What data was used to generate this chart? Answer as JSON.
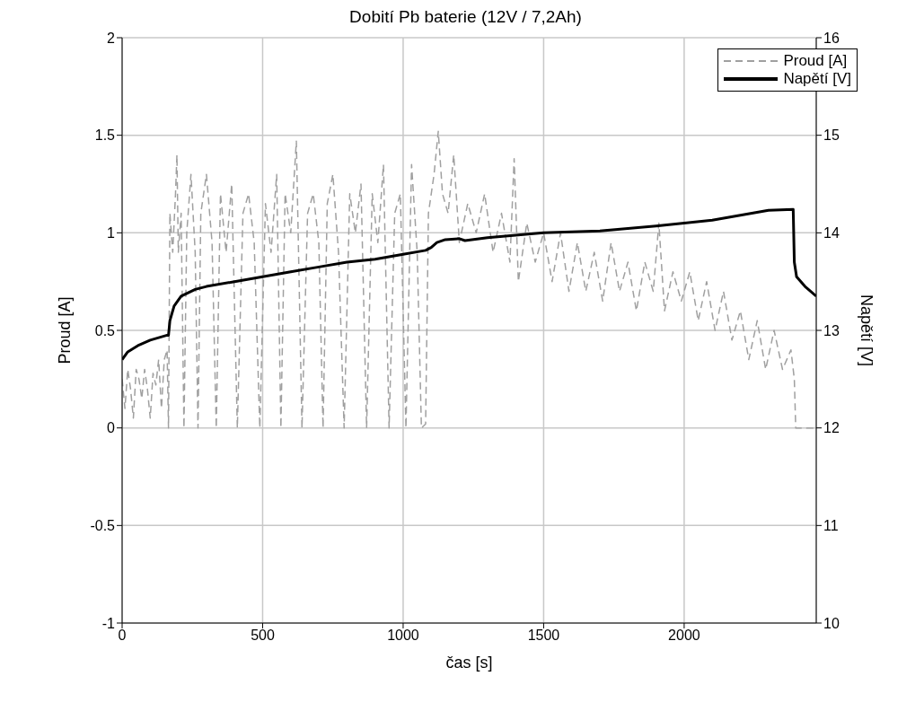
{
  "chart_data": {
    "type": "line",
    "title": "Dobití Pb baterie (12V / 7,2Ah)",
    "xlabel": "čas [s]",
    "ylabel": "Proud [A]",
    "y2label": "Napětí [V]",
    "xlim": [
      0,
      2470
    ],
    "xticks": [
      0,
      500,
      1000,
      1500,
      2000
    ],
    "ylim": [
      -1,
      2
    ],
    "yticks": [
      -1,
      -0.5,
      0,
      0.5,
      1,
      1.5,
      2
    ],
    "y2lim": [
      10,
      16
    ],
    "y2ticks": [
      10,
      11,
      12,
      13,
      14,
      15,
      16
    ],
    "grid": true,
    "legend": "top right",
    "series": [
      {
        "name": "Proud [A]",
        "color": "#a0a0a0",
        "line_style": "dashed",
        "x": [
          0,
          10,
          20,
          30,
          40,
          50,
          60,
          70,
          80,
          90,
          100,
          110,
          120,
          130,
          140,
          150,
          160,
          165,
          170,
          180,
          190,
          195,
          200,
          210,
          220,
          230,
          245,
          260,
          270,
          280,
          300,
          320,
          335,
          350,
          370,
          390,
          410,
          430,
          450,
          470,
          490,
          510,
          530,
          550,
          565,
          580,
          600,
          620,
          640,
          660,
          680,
          700,
          715,
          730,
          750,
          770,
          790,
          810,
          830,
          850,
          870,
          890,
          910,
          930,
          950,
          970,
          990,
          1010,
          1030,
          1050,
          1065,
          1080,
          1090,
          1110,
          1125,
          1140,
          1160,
          1180,
          1200,
          1230,
          1260,
          1290,
          1320,
          1350,
          1380,
          1395,
          1410,
          1440,
          1470,
          1500,
          1530,
          1560,
          1590,
          1620,
          1650,
          1680,
          1710,
          1740,
          1770,
          1800,
          1830,
          1860,
          1890,
          1910,
          1930,
          1960,
          1990,
          2020,
          2050,
          2080,
          2110,
          2140,
          2170,
          2200,
          2230,
          2260,
          2290,
          2320,
          2350,
          2380,
          2392,
          2397,
          2470
        ],
        "values": [
          0.25,
          0.1,
          0.3,
          0.2,
          0.05,
          0.3,
          0.25,
          0.15,
          0.3,
          0.2,
          0.05,
          0.28,
          0.22,
          0.35,
          0.1,
          0.35,
          0.4,
          0,
          1.1,
          0.9,
          1.2,
          1.4,
          0.9,
          1.1,
          0,
          1,
          1.3,
          0.9,
          0,
          1.1,
          1.3,
          0.95,
          0,
          1.2,
          0.9,
          1.25,
          0,
          1.1,
          1.2,
          0.95,
          0,
          1.15,
          0.9,
          1.3,
          0,
          1.2,
          1,
          1.47,
          0,
          1.1,
          1.2,
          0.95,
          0,
          1.15,
          1.3,
          0.9,
          0,
          1.2,
          1,
          1.25,
          0,
          1.2,
          0.95,
          1.35,
          0,
          1.1,
          1.2,
          0,
          1.35,
          0.9,
          0,
          0.02,
          1.1,
          1.3,
          1.52,
          1.2,
          1.1,
          1.4,
          0.95,
          1.15,
          1,
          1.2,
          0.9,
          1.1,
          0.85,
          1.38,
          0.75,
          1.05,
          0.85,
          1,
          0.75,
          1,
          0.7,
          0.95,
          0.7,
          0.9,
          0.65,
          0.95,
          0.7,
          0.85,
          0.6,
          0.85,
          0.7,
          1.05,
          0.6,
          0.8,
          0.65,
          0.8,
          0.55,
          0.75,
          0.5,
          0.7,
          0.45,
          0.6,
          0.35,
          0.55,
          0.3,
          0.5,
          0.3,
          0.4,
          0.25,
          0,
          0
        ]
      },
      {
        "name": "Napětí [V]",
        "color": "#000000",
        "line_style": "solid",
        "axis": "y2",
        "x": [
          0,
          20,
          60,
          100,
          160,
          165,
          170,
          185,
          210,
          260,
          300,
          400,
          500,
          600,
          700,
          800,
          900,
          1000,
          1080,
          1100,
          1120,
          1150,
          1200,
          1220,
          1300,
          1500,
          1700,
          1900,
          2000,
          2100,
          2200,
          2300,
          2388,
          2392,
          2400,
          2430,
          2470
        ],
        "values": [
          12.7,
          12.78,
          12.85,
          12.9,
          12.95,
          12.95,
          13.1,
          13.25,
          13.35,
          13.42,
          13.45,
          13.5,
          13.55,
          13.6,
          13.65,
          13.7,
          13.73,
          13.78,
          13.82,
          13.85,
          13.9,
          13.93,
          13.94,
          13.92,
          13.95,
          14,
          14.02,
          14.07,
          14.1,
          14.13,
          14.18,
          14.23,
          14.24,
          13.7,
          13.55,
          13.45,
          13.35
        ]
      }
    ]
  }
}
